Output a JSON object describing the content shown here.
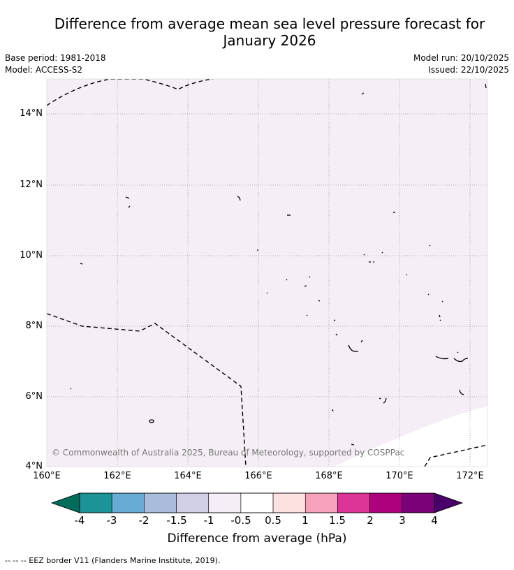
{
  "header": {
    "title_line1": "Difference from average mean sea level pressure forecast for",
    "title_line2": "January 2026",
    "base_period": "Base period: 1981-2018",
    "model": "Model: ACCESS-S2",
    "model_run": "Model run: 20/10/2025",
    "issued": "Issued: 22/10/2025"
  },
  "map": {
    "lat_labels": [
      "14°N",
      "12°N",
      "10°N",
      "8°N",
      "6°N",
      "4°N"
    ],
    "lon_labels": [
      "160°E",
      "162°E",
      "164°E",
      "166°E",
      "168°E",
      "170°E",
      "172°E"
    ],
    "field_fill_color": "#f5eef6",
    "copyright": "© Commonwealth of Australia 2025, Bureau of Meteorology, supported by COSPPac"
  },
  "colorbar": {
    "labels": [
      "-4",
      "-3",
      "-2",
      "-1.5",
      "-1",
      "-0.5",
      "0.5",
      "1",
      "1.5",
      "2",
      "3",
      "4"
    ],
    "colors": [
      "#1a9496",
      "#68abd4",
      "#a8bcdc",
      "#d0cfe6",
      "#f5eef6",
      "#ffffff",
      "#fde0e0",
      "#f7a2ba",
      "#dd3497",
      "#ae017e",
      "#7a0177"
    ],
    "low_extend_color": "#016c59",
    "high_extend_color": "#49006a",
    "title": "Difference from average (hPa)"
  },
  "legend": {
    "eez": "--  --  -- EEZ border V11 (Flanders Marine Institute, 2019)."
  }
}
